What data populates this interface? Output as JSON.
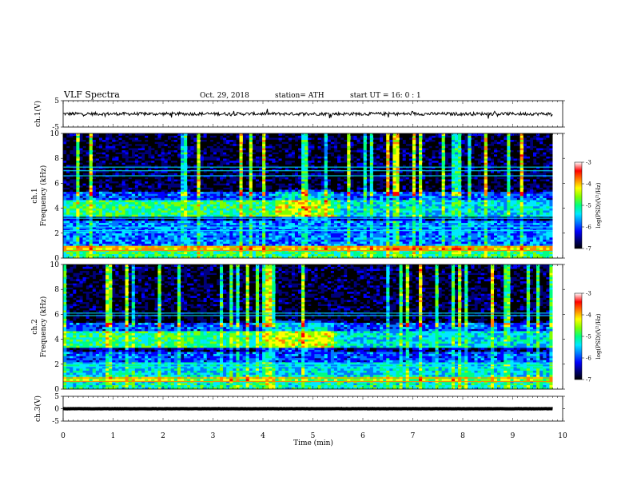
{
  "header": {
    "title": "VLF  Spectra",
    "date": "Oct. 29, 2018",
    "station": "station= ATH",
    "start": "start  UT  =   16: 0  : 1"
  },
  "chart_data": [
    {
      "type": "line",
      "name": "ch1-waveform",
      "ylabel": "ch.1(V)",
      "ylim": [
        -5,
        5
      ],
      "y_ticks": [
        "5",
        "-5"
      ],
      "xlim": [
        0,
        10
      ],
      "data_end_min": 9.8,
      "baseline": 0.0,
      "noise_amplitude": 0.6
    },
    {
      "type": "heatmap",
      "name": "ch1-spectrogram",
      "ylabel": "ch.1\nFrequency  (kHz)",
      "ylim": [
        0,
        10
      ],
      "y_ticks": [
        "0",
        "2",
        "4",
        "6",
        "8",
        "10"
      ],
      "xlim": [
        0,
        10
      ],
      "data_end_min": 9.8,
      "colorbar": {
        "label": "log(PSD)(V²/Hz)",
        "range": [
          -7,
          -3
        ],
        "ticks": [
          "-3",
          "-4",
          "-5",
          "-6",
          "-7"
        ]
      },
      "bands_khz": [
        {
          "from": 0.0,
          "to": 0.6,
          "level": 0.55
        },
        {
          "from": 0.6,
          "to": 1.0,
          "level": 0.75
        },
        {
          "from": 1.0,
          "to": 3.0,
          "level": 0.35
        },
        {
          "from": 3.0,
          "to": 3.4,
          "level": 0.15
        },
        {
          "from": 3.4,
          "to": 4.6,
          "level": 0.55
        },
        {
          "from": 4.6,
          "to": 5.4,
          "level": 0.3
        },
        {
          "from": 5.4,
          "to": 10.0,
          "level": 0.1
        }
      ],
      "narrowband_lines_khz": [
        0.6,
        0.9,
        2.2,
        2.5,
        3.2,
        6.6,
        7.0,
        7.3
      ]
    },
    {
      "type": "heatmap",
      "name": "ch2-spectrogram",
      "ylabel": "ch.2\nFrequency  (kHz)",
      "ylim": [
        0,
        10
      ],
      "y_ticks": [
        "0",
        "2",
        "4",
        "6",
        "8",
        "10"
      ],
      "xlim": [
        0,
        10
      ],
      "data_end_min": 9.8,
      "colorbar": {
        "label": "log(PSD)(V²/Hz)",
        "range": [
          -7,
          -3
        ],
        "ticks": [
          "-3",
          "-4",
          "-5",
          "-6",
          "-7"
        ]
      },
      "bands_khz": [
        {
          "from": 0.0,
          "to": 0.6,
          "level": 0.5
        },
        {
          "from": 0.6,
          "to": 1.0,
          "level": 0.65
        },
        {
          "from": 1.0,
          "to": 2.1,
          "level": 0.45
        },
        {
          "from": 2.1,
          "to": 3.0,
          "level": 0.3
        },
        {
          "from": 3.0,
          "to": 3.4,
          "level": 0.15
        },
        {
          "from": 3.4,
          "to": 4.6,
          "level": 0.55
        },
        {
          "from": 4.6,
          "to": 5.4,
          "level": 0.3
        },
        {
          "from": 5.4,
          "to": 10.0,
          "level": 0.1
        }
      ],
      "narrowband_lines_khz": [
        0.6,
        0.9,
        1.8,
        2.0,
        5.9,
        6.1
      ]
    },
    {
      "type": "line",
      "name": "ch3-waveform",
      "ylabel": "ch.3(V)",
      "ylim": [
        -5,
        5
      ],
      "y_ticks": [
        "5",
        "0",
        "-5"
      ],
      "xlim": [
        0,
        10
      ],
      "data_end_min": 9.8,
      "baseline": 0.0,
      "noise_amplitude": 0.05
    }
  ],
  "xaxis": {
    "label": "Time  (min)",
    "ticks": [
      "0",
      "1",
      "2",
      "3",
      "4",
      "5",
      "6",
      "7",
      "8",
      "9",
      "10"
    ]
  },
  "colors": {
    "colormap": [
      "#000000",
      "#00007a",
      "#0000ff",
      "#0078ff",
      "#00e8ff",
      "#00ff80",
      "#80ff00",
      "#ffff00",
      "#ff8000",
      "#ff0000",
      "#ffffff"
    ]
  }
}
